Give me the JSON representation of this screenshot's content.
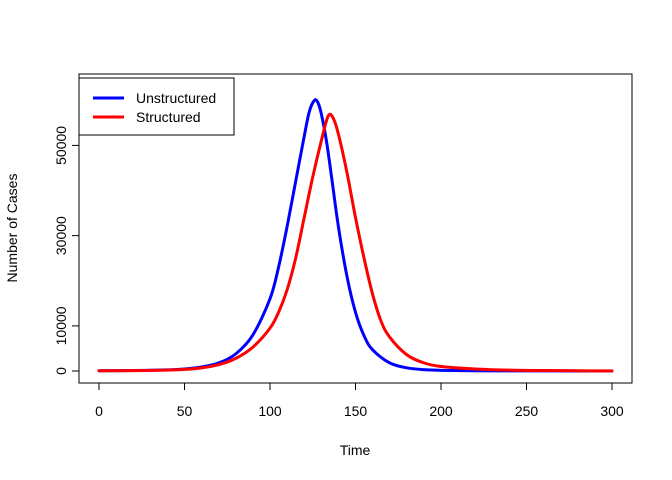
{
  "chart_data": {
    "type": "line",
    "title": "",
    "xlabel": "Time",
    "ylabel": "Number of Cases",
    "xlim": [
      0,
      300
    ],
    "ylim": [
      0,
      62500
    ],
    "x_ticks": [
      0,
      50,
      100,
      150,
      200,
      250,
      300
    ],
    "y_ticks": [
      0,
      10000,
      30000,
      50000
    ],
    "grid": false,
    "legend_position": "top-left",
    "series": [
      {
        "name": "Unstructured",
        "color": "#0000ff",
        "x": [
          0,
          20,
          40,
          50,
          60,
          70,
          80,
          90,
          100,
          105,
          110,
          115,
          120,
          123,
          126,
          128,
          130,
          133,
          136,
          140,
          145,
          150,
          155,
          160,
          170,
          180,
          190,
          200,
          220,
          240,
          260,
          280,
          300
        ],
        "y": [
          50,
          100,
          250,
          450,
          900,
          1800,
          3800,
          8000,
          16000,
          23000,
          32000,
          42000,
          52000,
          57500,
          60000,
          59500,
          57000,
          51000,
          43000,
          32000,
          21000,
          13000,
          7800,
          4700,
          1800,
          700,
          300,
          150,
          60,
          30,
          20,
          10,
          10
        ]
      },
      {
        "name": "Structured",
        "color": "#ff0000",
        "x": [
          0,
          20,
          40,
          50,
          60,
          70,
          80,
          90,
          100,
          105,
          110,
          115,
          120,
          125,
          130,
          134,
          137,
          140,
          145,
          150,
          155,
          160,
          165,
          170,
          180,
          190,
          200,
          220,
          240,
          260,
          280,
          300
        ],
        "y": [
          50,
          80,
          200,
          350,
          700,
          1400,
          2800,
          5300,
          9500,
          13000,
          18000,
          25000,
          34000,
          43000,
          51000,
          56500,
          56000,
          52500,
          44000,
          34000,
          25000,
          17000,
          11000,
          7500,
          3600,
          1800,
          1000,
          450,
          200,
          100,
          50,
          20
        ]
      }
    ]
  }
}
